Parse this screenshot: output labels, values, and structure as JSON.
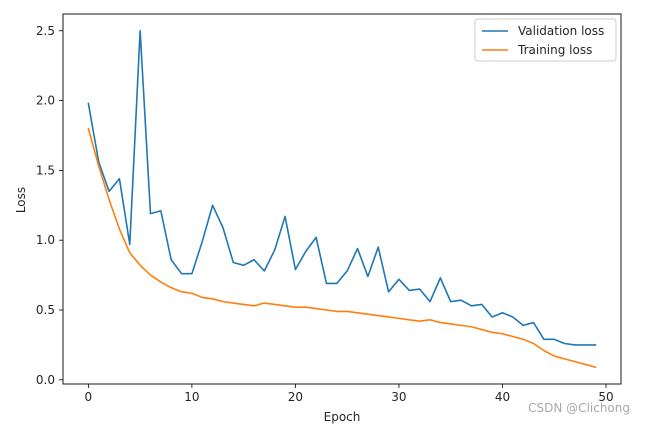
{
  "chart_data": {
    "type": "line",
    "title": "",
    "xlabel": "Epoch",
    "ylabel": "Loss",
    "xlim": [
      -2.45,
      51.45
    ],
    "ylim": [
      -0.03,
      2.62
    ],
    "xticks": [
      0,
      10,
      20,
      30,
      40,
      50
    ],
    "yticks": [
      0.0,
      0.5,
      1.0,
      1.5,
      2.0,
      2.5
    ],
    "xtick_labels": [
      "0",
      "10",
      "20",
      "30",
      "40",
      "50"
    ],
    "ytick_labels": [
      "0.0",
      "0.5",
      "1.0",
      "1.5",
      "2.0",
      "2.5"
    ],
    "grid": false,
    "legend_position": "top-right",
    "x": [
      0,
      1,
      2,
      3,
      4,
      5,
      6,
      7,
      8,
      9,
      10,
      11,
      12,
      13,
      14,
      15,
      16,
      17,
      18,
      19,
      20,
      21,
      22,
      23,
      24,
      25,
      26,
      27,
      28,
      29,
      30,
      31,
      32,
      33,
      34,
      35,
      36,
      37,
      38,
      39,
      40,
      41,
      42,
      43,
      44,
      45,
      46,
      47,
      48,
      49
    ],
    "series": [
      {
        "name": "Validation loss",
        "color": "#1f77b4",
        "values": [
          1.98,
          1.56,
          1.35,
          1.44,
          0.97,
          2.5,
          1.19,
          1.21,
          0.86,
          0.76,
          0.76,
          0.99,
          1.25,
          1.09,
          0.84,
          0.82,
          0.86,
          0.78,
          0.93,
          1.17,
          0.79,
          0.92,
          1.02,
          0.69,
          0.69,
          0.78,
          0.94,
          0.74,
          0.95,
          0.63,
          0.72,
          0.64,
          0.65,
          0.56,
          0.73,
          0.56,
          0.57,
          0.53,
          0.54,
          0.45,
          0.48,
          0.45,
          0.39,
          0.41,
          0.29,
          0.29,
          0.26,
          0.25,
          0.25,
          0.25
        ]
      },
      {
        "name": "Training loss",
        "color": "#ff7f0e",
        "values": [
          1.8,
          1.53,
          1.29,
          1.08,
          0.91,
          0.82,
          0.75,
          0.7,
          0.66,
          0.63,
          0.62,
          0.59,
          0.58,
          0.56,
          0.55,
          0.54,
          0.53,
          0.55,
          0.54,
          0.53,
          0.52,
          0.52,
          0.51,
          0.5,
          0.49,
          0.49,
          0.48,
          0.47,
          0.46,
          0.45,
          0.44,
          0.43,
          0.42,
          0.43,
          0.41,
          0.4,
          0.39,
          0.38,
          0.36,
          0.34,
          0.33,
          0.31,
          0.29,
          0.26,
          0.21,
          0.17,
          0.15,
          0.13,
          0.11,
          0.09
        ]
      }
    ]
  },
  "watermark": "CSDN @Clichong"
}
